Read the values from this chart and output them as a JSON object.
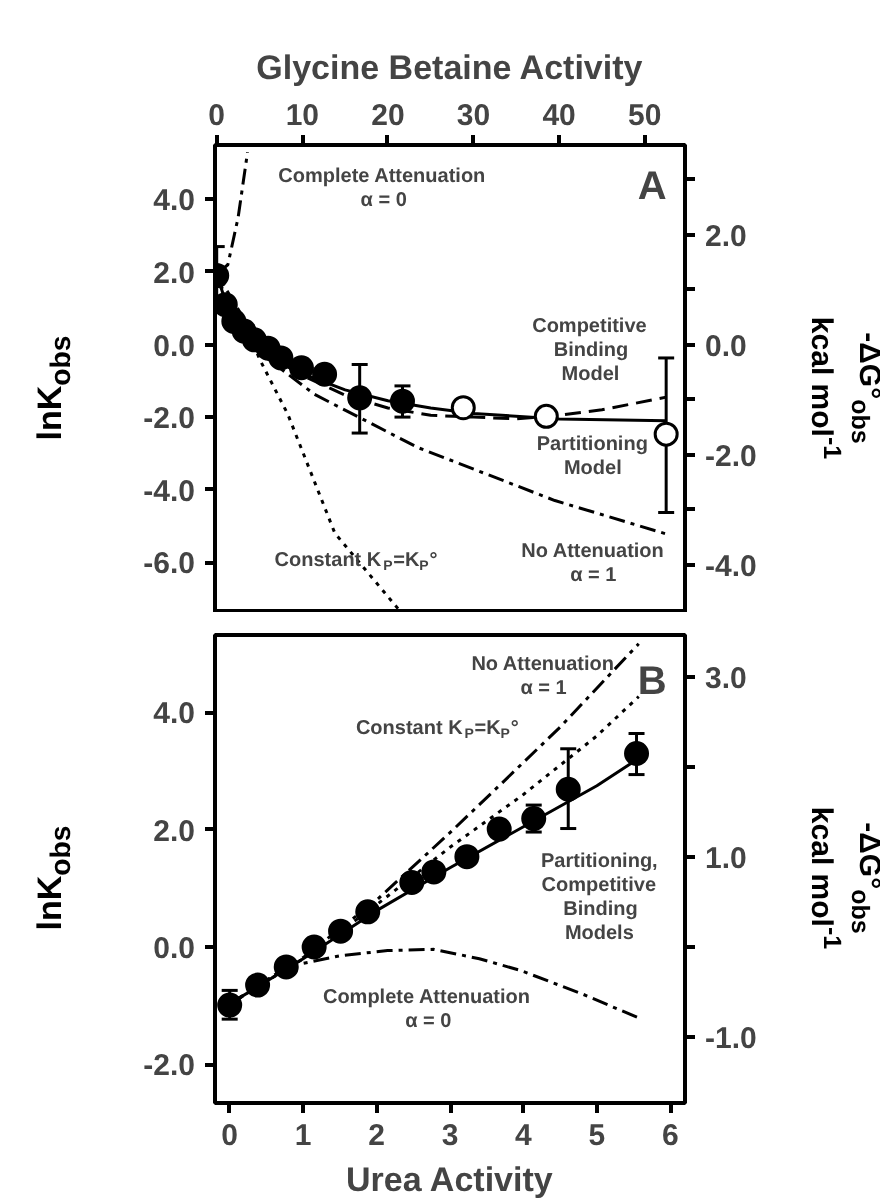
{
  "chart_data": [
    {
      "type": "line",
      "xlabel": "Glycine Betaine Activity",
      "ylabel": "lnK$_{obs}$",
      "y2label": "-ΔG°$_{obs}$\nkcal mol$^{-1}$",
      "xlim": [
        -0.2,
        54.7
      ],
      "xticks": [
        0,
        10,
        20,
        30,
        40,
        50
      ],
      "ylim": [
        -7.4,
        5.5
      ],
      "yticks": [
        {
          "value": -6,
          "label": "-6.0"
        },
        {
          "value": -4,
          "label": "-4.0"
        },
        {
          "value": -2,
          "label": "-2.0"
        },
        {
          "value": 0,
          "label": "0.0"
        },
        {
          "value": 2,
          "label": "2.0"
        },
        {
          "value": 4,
          "label": "4.0"
        }
      ],
      "y2lim": [
        -4.88,
        3.63
      ],
      "y2ticks": [
        {
          "value": -4,
          "label": "-4.0"
        },
        {
          "value": -3,
          "label": null
        },
        {
          "value": -2,
          "label": "-2.0"
        },
        {
          "value": -1,
          "label": null
        },
        {
          "value": 0,
          "label": "0.0"
        },
        {
          "value": 1,
          "label": null
        },
        {
          "value": 2,
          "label": "2.0"
        },
        {
          "value": 3,
          "label": null
        }
      ],
      "series": [
        {
          "color": "#000000",
          "line_style": "solid",
          "x": [
            0,
            1,
            2,
            4,
            6,
            10,
            15,
            20,
            25,
            30,
            40,
            52.5
          ],
          "values": [
            1.95,
            1.2,
            0.75,
            0.1,
            -0.3,
            -0.8,
            -1.25,
            -1.55,
            -1.75,
            -1.9,
            -2.05,
            -2.1
          ]
        },
        {
          "color": "#000000",
          "line_style": "dashed",
          "x": [
            0,
            1,
            2,
            4,
            6,
            10,
            15,
            20,
            25,
            30,
            35,
            40,
            45,
            52.5
          ],
          "values": [
            1.95,
            1.2,
            0.75,
            0.1,
            -0.3,
            -0.85,
            -1.4,
            -1.75,
            -1.95,
            -2.0,
            -2.05,
            -1.95,
            -1.8,
            -1.45
          ]
        },
        {
          "color": "#000000",
          "line_style": "dashdot",
          "x": [
            0,
            2,
            4,
            6,
            11.4,
            23.5,
            39.5,
            52.5
          ],
          "values": [
            1.95,
            0.7,
            0.0,
            -0.4,
            -1.37,
            -2.84,
            -4.3,
            -5.22
          ]
        },
        {
          "color": "#000000",
          "line_style": "dotted",
          "x": [
            0,
            2.9,
            5,
            8.3,
            13.8,
            21.6
          ],
          "values": [
            1.95,
            0.82,
            -0.4,
            -1.92,
            -5.2,
            -7.4
          ]
        },
        {
          "color": "#000000",
          "line_style": "dashdot",
          "x": [
            0,
            1.3,
            2.5,
            3.6
          ],
          "values": [
            1.95,
            2.2,
            3.5,
            5.3
          ]
        },
        {
          "type": "scatter",
          "marker": "circle",
          "color": "#000000",
          "x": [
            0,
            1.0,
            2.0,
            3.2,
            4.4,
            6.0,
            7.5,
            9.9,
            12.6,
            16.7,
            21.7
          ],
          "values": [
            1.9,
            1.1,
            0.64,
            0.37,
            0.13,
            -0.1,
            -0.37,
            -0.64,
            -0.82,
            -1.47,
            -1.56
          ],
          "errors": [
            0.8,
            null,
            null,
            null,
            null,
            null,
            null,
            null,
            null,
            [
              -2.44,
              -0.55
            ],
            [
              -2.0,
              -1.14
            ]
          ]
        },
        {
          "type": "scatter",
          "marker": "circle",
          "color": "#ffffff",
          "x": [
            28.8,
            38.5,
            52.5
          ],
          "values": [
            -1.74,
            -1.98,
            -2.47
          ],
          "errors": [
            null,
            [
              -2.15,
              -1.8
            ],
            [
              -4.63,
              -0.37
            ]
          ]
        }
      ],
      "annotations": [
        "Complete Attenuation\nα = 0",
        "Competitive\nBinding\nModel",
        "Partitioning\nModel",
        "No Attenuation\nα = 1",
        "Constant K$_{P}$=K$_{P}$°",
        "A"
      ]
    },
    {
      "type": "line",
      "xlabel": "Urea Activity",
      "ylabel": "lnK$_{obs}$",
      "y2label": "-ΔG°$_{obs}$\nkcal mol$^{-1}$",
      "xlim": [
        -0.2,
        6.2
      ],
      "xticks": [
        0,
        1,
        2,
        3,
        4,
        5,
        6
      ],
      "ylim": [
        -2.66,
        5.32
      ],
      "yticks": [
        {
          "value": -2,
          "label": "-2.0"
        },
        {
          "value": 0,
          "label": "0.0"
        },
        {
          "value": 2,
          "label": "2.0"
        },
        {
          "value": 4,
          "label": "4.0"
        }
      ],
      "y2lim": [
        -1.73,
        3.47
      ],
      "y2ticks": [
        {
          "value": -1,
          "label": "-1.0"
        },
        {
          "value": 0,
          "label": null
        },
        {
          "value": 1,
          "label": "1.0"
        },
        {
          "value": 2,
          "label": null
        },
        {
          "value": 3,
          "label": "3.0"
        }
      ],
      "series": [
        {
          "color": "#000000",
          "line_style": "solid",
          "x": [
            0,
            1,
            2,
            3,
            4,
            5,
            5.55
          ],
          "values": [
            -0.97,
            -0.2,
            0.62,
            1.35,
            2.05,
            2.75,
            3.2
          ]
        },
        {
          "color": "#000000",
          "line_style": "dashdot",
          "x": [
            0,
            1,
            2,
            3,
            3.67,
            4.5,
            5.57
          ],
          "values": [
            -0.97,
            -0.18,
            0.8,
            1.95,
            2.75,
            3.75,
            5.17
          ]
        },
        {
          "color": "#000000",
          "line_style": "dotted",
          "x": [
            0,
            1,
            2,
            3,
            4,
            5,
            5.57
          ],
          "values": [
            -0.97,
            -0.2,
            0.72,
            1.7,
            2.6,
            3.6,
            4.27
          ]
        },
        {
          "color": "#000000",
          "line_style": "dashdot",
          "x": [
            0,
            0.77,
            1.5,
            2.15,
            2.78,
            3.4,
            3.96,
            4.8,
            5.59
          ],
          "values": [
            -0.99,
            -0.34,
            -0.15,
            -0.06,
            -0.04,
            -0.2,
            -0.4,
            -0.8,
            -1.22
          ]
        },
        {
          "type": "scatter",
          "marker": "circle",
          "color": "#000000",
          "x": [
            0,
            0.38,
            0.77,
            1.15,
            1.51,
            1.88,
            2.48,
            2.78,
            3.23,
            3.67,
            4.14,
            4.61,
            5.54
          ],
          "values": [
            -0.99,
            -0.65,
            -0.34,
            0.0,
            0.27,
            0.6,
            1.1,
            1.28,
            1.54,
            2.01,
            2.19,
            2.69,
            3.3
          ],
          "errors": [
            [
              -1.23,
              -0.74
            ],
            null,
            null,
            null,
            null,
            null,
            null,
            null,
            null,
            null,
            [
              1.96,
              2.42
            ],
            [
              2.02,
              3.38
            ],
            [
              2.94,
              3.64
            ]
          ]
        }
      ],
      "annotations": [
        "No Attenuation\nα = 1",
        "Constant K$_{P}$=K$_{P}$°",
        "Partitioning,\nCompetitive\nBinding\nModels",
        "Complete Attenuation\nα = 0",
        "B"
      ]
    }
  ]
}
